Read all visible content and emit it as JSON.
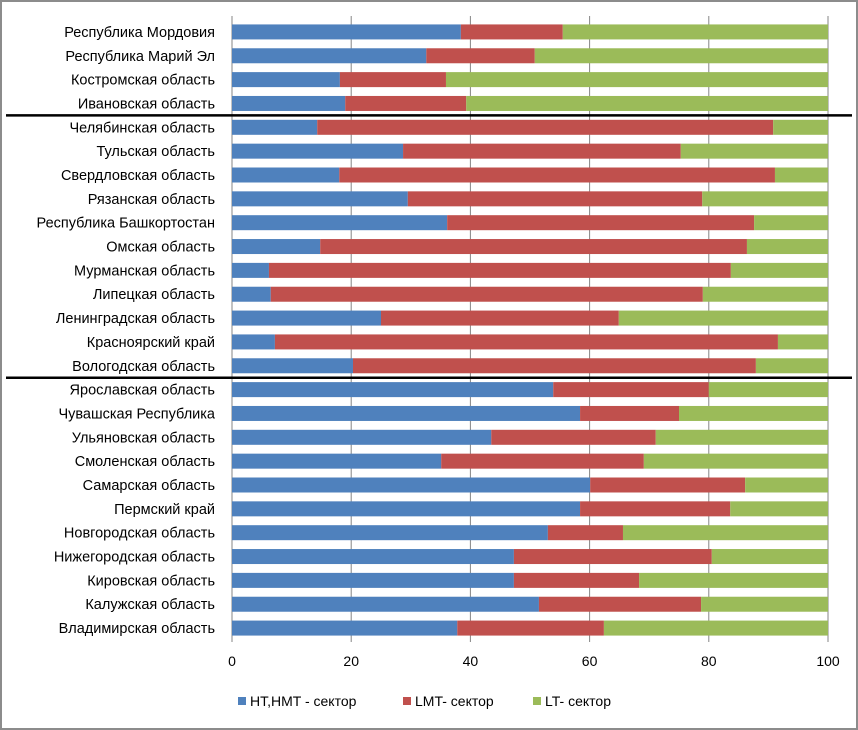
{
  "chart_data": {
    "type": "bar",
    "orientation": "horizontal",
    "stacked": true,
    "title": "",
    "xlabel": "",
    "ylabel": "",
    "xlim": [
      0,
      100
    ],
    "x_ticks": [
      0,
      20,
      40,
      60,
      80,
      100
    ],
    "grid": "vertical",
    "legend_position": "bottom",
    "categories": [
      "Республика Мордовия",
      "Республика Марий Эл",
      "Костромская область",
      "Ивановская область",
      "Челябинская область",
      "Тульская область",
      "Свердловская область",
      "Рязанская область",
      "Республика Башкортостан",
      "Омская область",
      "Мурманская область",
      "Липецкая область",
      "Ленинградская область",
      "Красноярский край",
      "Вологодская область",
      "Ярославская область",
      "Чувашская Республика",
      "Ульяновская область",
      "Смоленская область",
      "Самарская область",
      "Пермский край",
      "Новгородская область",
      "Нижегородская область",
      "Кировская область",
      "Калужская область",
      "Владимирская область"
    ],
    "group_separators_after": [
      "Ивановская область",
      "Вологодская область"
    ],
    "series": [
      {
        "name": "HT,HMT - сектор",
        "color": "#4f81bd",
        "values": [
          38.4,
          32.6,
          18.1,
          19.0,
          14.3,
          28.7,
          18.0,
          29.5,
          36.1,
          14.8,
          6.2,
          6.5,
          25.0,
          7.2,
          20.3,
          53.9,
          58.4,
          43.5,
          35.1,
          60.1,
          58.4,
          53.0,
          47.3,
          47.3,
          51.5,
          37.8
        ]
      },
      {
        "name": "LMT- сектор",
        "color": "#c0504d",
        "values": [
          17.1,
          18.2,
          17.8,
          20.3,
          76.5,
          46.6,
          73.1,
          49.4,
          51.5,
          71.6,
          77.5,
          72.5,
          39.9,
          84.4,
          67.6,
          26.1,
          16.6,
          27.6,
          34.0,
          26.0,
          25.2,
          12.6,
          33.2,
          21.0,
          27.2,
          24.6
        ]
      },
      {
        "name": "LT- сектор",
        "color": "#9bbb59",
        "values": [
          44.5,
          49.2,
          64.1,
          60.7,
          9.2,
          24.7,
          8.9,
          21.1,
          12.4,
          13.6,
          16.3,
          21.0,
          35.1,
          8.4,
          12.1,
          20.0,
          25.0,
          28.9,
          30.9,
          13.9,
          16.4,
          34.4,
          19.5,
          31.7,
          21.3,
          37.6
        ]
      }
    ]
  }
}
